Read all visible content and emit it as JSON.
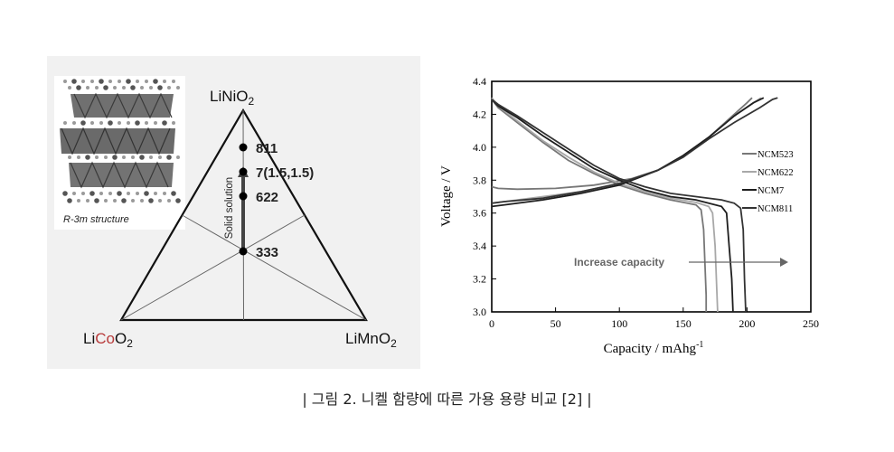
{
  "left_figure": {
    "vertex_top": {
      "base": "LiNiO",
      "sub": "2"
    },
    "vertex_left": {
      "pre": "Li",
      "mid": "Co",
      "base": "O",
      "sub": "2"
    },
    "vertex_right": {
      "pre": "Li",
      "mid": "Mn",
      "base": "O",
      "sub": "2"
    },
    "structure_label": "R-3m structure",
    "arrow_label": "Solid solution",
    "compositions": [
      {
        "label": "811",
        "ni_fraction": 0.8
      },
      {
        "label": "7(1.5,1.5)",
        "ni_fraction": 0.7
      },
      {
        "label": "622",
        "ni_fraction": 0.6
      },
      {
        "label": "333",
        "ni_fraction": 0.333
      }
    ]
  },
  "chart_data": {
    "type": "line",
    "xlabel": "Capacity / mAhg",
    "xlabel_sup": "-1",
    "ylabel": "Voltage / V",
    "xlim": [
      0,
      250
    ],
    "ylim": [
      3.0,
      4.4
    ],
    "xticks": [
      0,
      50,
      100,
      150,
      200,
      250
    ],
    "yticks": [
      3.0,
      3.2,
      3.4,
      3.6,
      3.8,
      4.0,
      4.2,
      4.4
    ],
    "annotation": "Increase capacity",
    "legend_position": "right",
    "series": [
      {
        "name": "NCM523",
        "color": "#777777",
        "charge": [
          [
            0,
            3.76
          ],
          [
            5,
            3.75
          ],
          [
            20,
            3.745
          ],
          [
            50,
            3.75
          ],
          [
            80,
            3.77
          ],
          [
            110,
            3.81
          ],
          [
            130,
            3.86
          ],
          [
            150,
            3.94
          ],
          [
            170,
            4.06
          ],
          [
            190,
            4.2
          ],
          [
            200,
            4.27
          ],
          [
            204,
            4.3
          ]
        ],
        "discharge": [
          [
            0,
            4.29
          ],
          [
            5,
            4.24
          ],
          [
            20,
            4.15
          ],
          [
            40,
            4.03
          ],
          [
            60,
            3.92
          ],
          [
            80,
            3.84
          ],
          [
            100,
            3.77
          ],
          [
            120,
            3.72
          ],
          [
            140,
            3.68
          ],
          [
            160,
            3.65
          ],
          [
            164,
            3.62
          ],
          [
            166,
            3.5
          ],
          [
            167,
            3.3
          ],
          [
            168,
            3.1
          ],
          [
            168,
            3.0
          ]
        ]
      },
      {
        "name": "NCM622",
        "color": "#a8a8a8",
        "charge": [
          [
            0,
            3.66
          ],
          [
            10,
            3.67
          ],
          [
            40,
            3.7
          ],
          [
            70,
            3.73
          ],
          [
            100,
            3.78
          ],
          [
            130,
            3.86
          ],
          [
            150,
            3.95
          ],
          [
            170,
            4.06
          ],
          [
            190,
            4.19
          ],
          [
            205,
            4.27
          ],
          [
            211,
            4.3
          ]
        ],
        "discharge": [
          [
            0,
            4.3
          ],
          [
            5,
            4.25
          ],
          [
            20,
            4.16
          ],
          [
            40,
            4.04
          ],
          [
            60,
            3.94
          ],
          [
            80,
            3.85
          ],
          [
            100,
            3.78
          ],
          [
            120,
            3.73
          ],
          [
            140,
            3.69
          ],
          [
            160,
            3.665
          ],
          [
            170,
            3.64
          ],
          [
            173,
            3.6
          ],
          [
            175,
            3.4
          ],
          [
            176,
            3.2
          ],
          [
            177,
            3.0
          ]
        ]
      },
      {
        "name": "NCM7",
        "color": "#1e1e1e",
        "charge": [
          [
            0,
            3.64
          ],
          [
            10,
            3.65
          ],
          [
            40,
            3.68
          ],
          [
            70,
            3.72
          ],
          [
            100,
            3.77
          ],
          [
            130,
            3.86
          ],
          [
            150,
            3.95
          ],
          [
            170,
            4.06
          ],
          [
            190,
            4.19
          ],
          [
            205,
            4.27
          ],
          [
            213,
            4.3
          ]
        ],
        "discharge": [
          [
            0,
            4.29
          ],
          [
            5,
            4.25
          ],
          [
            20,
            4.18
          ],
          [
            40,
            4.07
          ],
          [
            60,
            3.97
          ],
          [
            80,
            3.87
          ],
          [
            100,
            3.8
          ],
          [
            120,
            3.74
          ],
          [
            140,
            3.7
          ],
          [
            160,
            3.68
          ],
          [
            180,
            3.64
          ],
          [
            184,
            3.6
          ],
          [
            186,
            3.4
          ],
          [
            188,
            3.2
          ],
          [
            189,
            3.0
          ]
        ]
      },
      {
        "name": "NCM811",
        "color": "#333333",
        "charge": [
          [
            0,
            3.66
          ],
          [
            10,
            3.67
          ],
          [
            40,
            3.69
          ],
          [
            70,
            3.73
          ],
          [
            100,
            3.78
          ],
          [
            130,
            3.86
          ],
          [
            150,
            3.94
          ],
          [
            170,
            4.05
          ],
          [
            190,
            4.15
          ],
          [
            210,
            4.24
          ],
          [
            220,
            4.29
          ],
          [
            224,
            4.3
          ]
        ],
        "discharge": [
          [
            0,
            4.29
          ],
          [
            5,
            4.26
          ],
          [
            20,
            4.19
          ],
          [
            40,
            4.09
          ],
          [
            60,
            3.99
          ],
          [
            80,
            3.89
          ],
          [
            100,
            3.81
          ],
          [
            120,
            3.76
          ],
          [
            140,
            3.72
          ],
          [
            160,
            3.7
          ],
          [
            180,
            3.68
          ],
          [
            190,
            3.66
          ],
          [
            195,
            3.63
          ],
          [
            197,
            3.5
          ],
          [
            198,
            3.2
          ],
          [
            199,
            3.0
          ]
        ]
      }
    ]
  },
  "caption": "| 그림 2. 니켈 함량에 따른 가용 용량 비교 [2] |"
}
